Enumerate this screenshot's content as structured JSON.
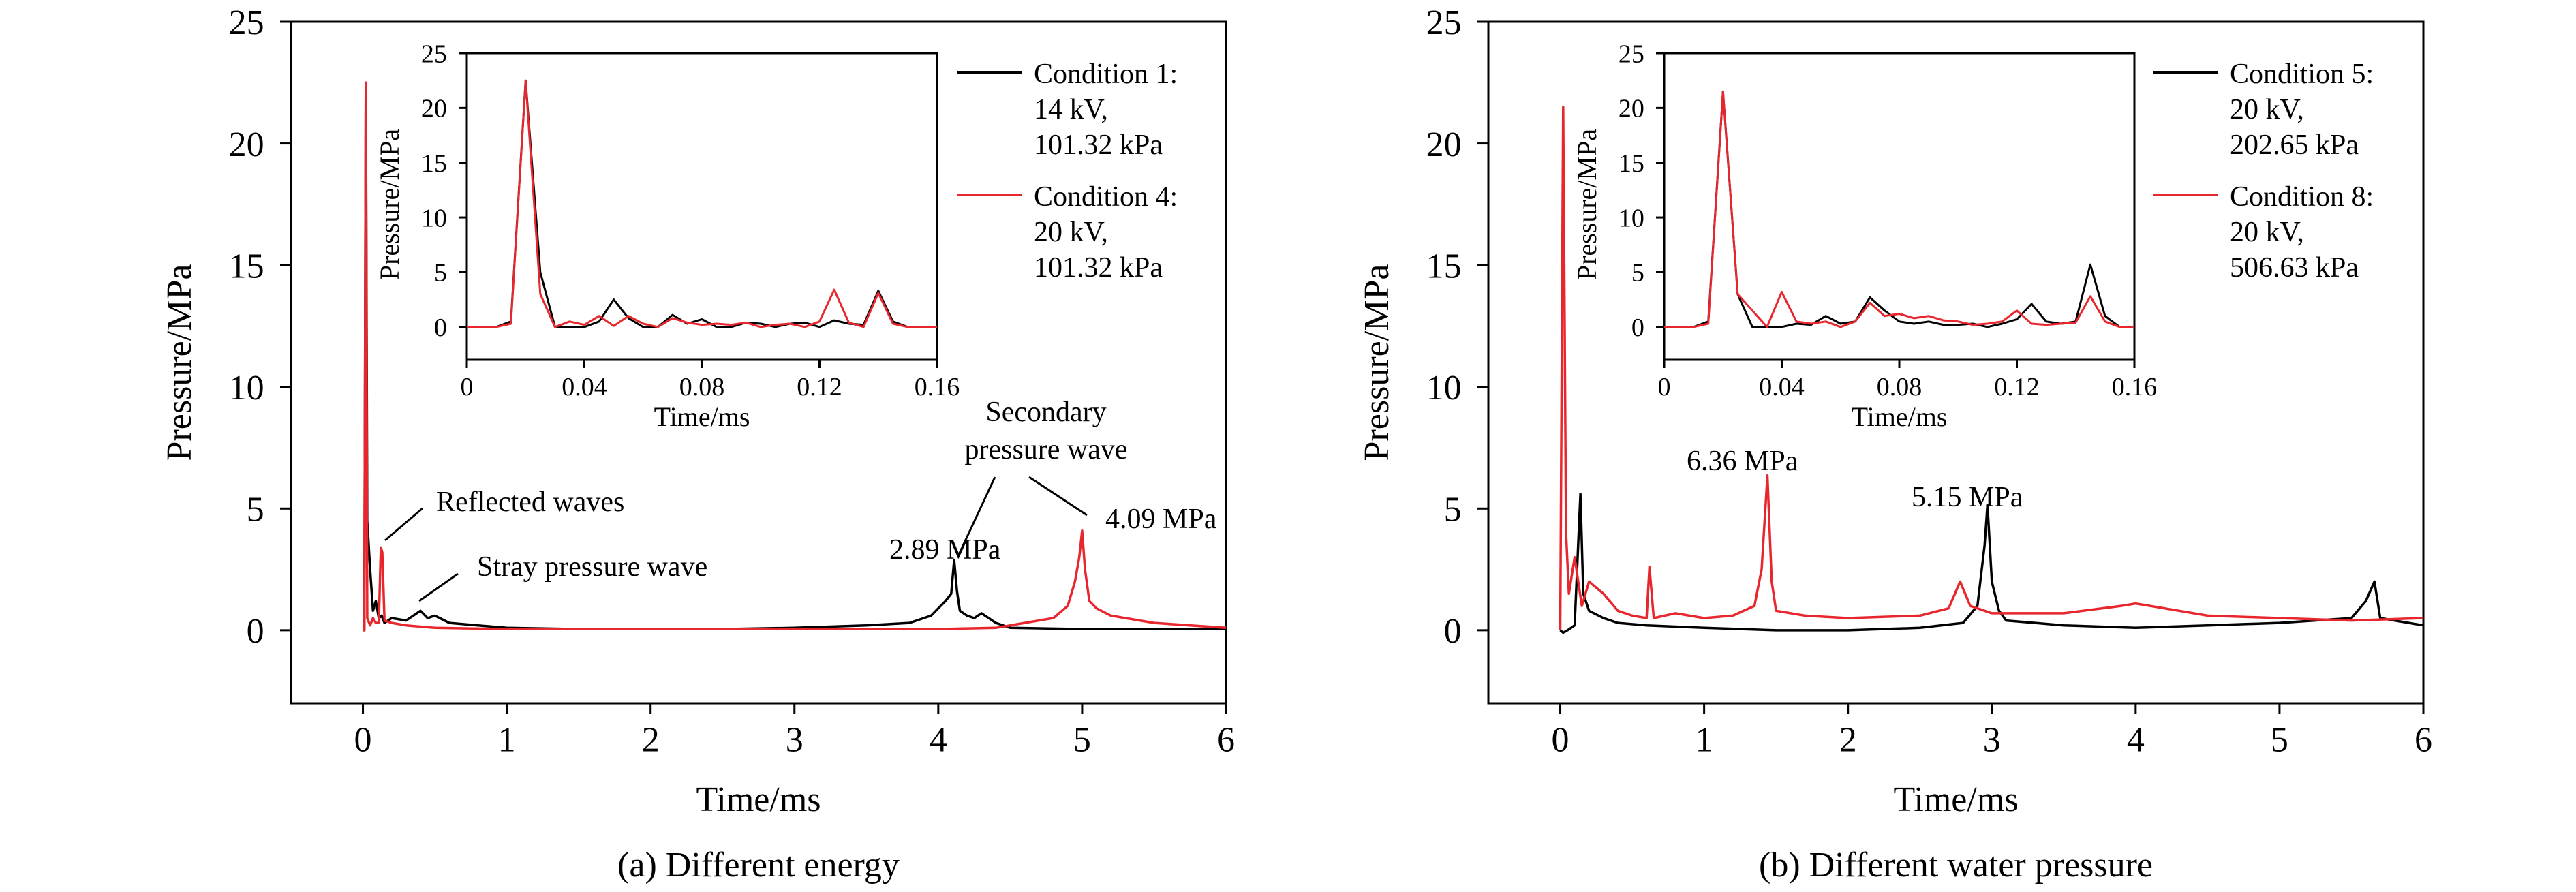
{
  "chart_data": [
    {
      "type": "line",
      "panel": "a",
      "caption": "(a) Different energy",
      "xlabel": "Time/ms",
      "ylabel": "Pressure/MPa",
      "xlim": [
        -0.5,
        6
      ],
      "ylim": [
        -3,
        25
      ],
      "xticks": [
        "0",
        "1",
        "2",
        "3",
        "4",
        "5",
        "6"
      ],
      "yticks": [
        "0",
        "5",
        "10",
        "15",
        "20",
        "25"
      ],
      "grid": false,
      "legend_position": "top-right",
      "series": [
        {
          "name": "Condition 1:",
          "legend_lines": [
            "Condition 1:",
            "14 kV,",
            "101.32 kPa"
          ],
          "color": "#000000",
          "x": [
            0,
            0.01,
            0.02,
            0.03,
            0.05,
            0.07,
            0.09,
            0.11,
            0.13,
            0.15,
            0.2,
            0.3,
            0.4,
            0.45,
            0.5,
            0.6,
            0.8,
            1.0,
            1.5,
            2.0,
            2.5,
            3.0,
            3.5,
            3.8,
            3.95,
            4.0,
            4.05,
            4.09,
            4.11,
            4.13,
            4.15,
            4.2,
            4.25,
            4.3,
            4.4,
            4.5,
            5.0,
            6.0
          ],
          "y": [
            0,
            0,
            22.5,
            4.5,
            2.5,
            0.8,
            1.2,
            0.5,
            0.6,
            0.3,
            0.5,
            0.4,
            0.8,
            0.5,
            0.6,
            0.3,
            0.2,
            0.1,
            0.05,
            0.05,
            0.05,
            0.1,
            0.2,
            0.3,
            0.6,
            0.9,
            1.2,
            1.5,
            2.89,
            1.6,
            0.8,
            0.6,
            0.5,
            0.7,
            0.3,
            0.1,
            0.05,
            0.05
          ]
        },
        {
          "name": "Condition 4:",
          "legend_lines": [
            "Condition 4:",
            "20 kV,",
            "101.32 kPa"
          ],
          "color": "#e8262d",
          "x": [
            0,
            0.01,
            0.02,
            0.03,
            0.05,
            0.07,
            0.09,
            0.11,
            0.125,
            0.135,
            0.15,
            0.2,
            0.3,
            0.5,
            1.0,
            2.0,
            3.0,
            4.0,
            4.4,
            4.6,
            4.8,
            4.9,
            4.95,
            4.98,
            5.0,
            5.02,
            5.05,
            5.1,
            5.2,
            5.3,
            5.5,
            6.0
          ],
          "y": [
            0,
            0,
            22.5,
            0.5,
            0.2,
            0.5,
            0.3,
            0.3,
            3.4,
            3.2,
            0.4,
            0.3,
            0.2,
            0.1,
            0.05,
            0.05,
            0.05,
            0.05,
            0.1,
            0.3,
            0.5,
            1.0,
            2.0,
            3.0,
            4.09,
            2.5,
            1.2,
            0.9,
            0.6,
            0.5,
            0.3,
            0.1
          ]
        }
      ],
      "annotations": [
        "Reflected waves",
        "Stray pressure wave",
        "2.89 MPa",
        "Secondary",
        "pressure wave",
        "4.09 MPa"
      ],
      "inset": {
        "xlabel": "Time/ms",
        "ylabel": "Pressure/MPa",
        "xlim": [
          0,
          0.16
        ],
        "ylim": [
          -3,
          25
        ],
        "xticks": [
          "0",
          "0.04",
          "0.08",
          "0.12",
          "0.16"
        ],
        "yticks": [
          "0",
          "5",
          "10",
          "15",
          "20",
          "25"
        ],
        "series": [
          {
            "color": "#000000",
            "x": [
              0,
              0.01,
              0.015,
              0.02,
              0.025,
              0.03,
              0.035,
              0.04,
              0.045,
              0.05,
              0.055,
              0.06,
              0.065,
              0.07,
              0.075,
              0.08,
              0.085,
              0.09,
              0.095,
              0.1,
              0.105,
              0.11,
              0.115,
              0.12,
              0.125,
              0.13,
              0.135,
              0.14,
              0.145,
              0.15,
              0.155,
              0.16
            ],
            "y": [
              0,
              0,
              0.5,
              22.5,
              5,
              0,
              0,
              0,
              0.5,
              2.5,
              0.8,
              0,
              0,
              1.1,
              0.3,
              0.7,
              0,
              0,
              0.4,
              0.3,
              0,
              0.3,
              0.4,
              0,
              0.6,
              0.3,
              0.2,
              3.3,
              0.5,
              0,
              0,
              0
            ]
          },
          {
            "color": "#e8262d",
            "x": [
              0,
              0.01,
              0.015,
              0.02,
              0.025,
              0.03,
              0.035,
              0.04,
              0.045,
              0.05,
              0.055,
              0.06,
              0.065,
              0.07,
              0.075,
              0.08,
              0.085,
              0.09,
              0.095,
              0.1,
              0.105,
              0.11,
              0.115,
              0.12,
              0.125,
              0.13,
              0.135,
              0.14,
              0.145,
              0.15,
              0.155,
              0.16
            ],
            "y": [
              0,
              0,
              0.3,
              22.5,
              3,
              0,
              0.5,
              0.2,
              1,
              0.1,
              1,
              0.3,
              0,
              0.8,
              0.4,
              0.2,
              0.3,
              0.2,
              0.4,
              0,
              0.2,
              0.3,
              0,
              0.5,
              3.4,
              0.4,
              0,
              3.1,
              0.3,
              0,
              0,
              0
            ]
          }
        ]
      }
    },
    {
      "type": "line",
      "panel": "b",
      "caption": "(b) Different water pressure",
      "xlabel": "Time/ms",
      "ylabel": "Pressure/MPa",
      "xlim": [
        -0.5,
        6
      ],
      "ylim": [
        -3,
        25
      ],
      "xticks": [
        "0",
        "1",
        "2",
        "3",
        "4",
        "5",
        "6"
      ],
      "yticks": [
        "0",
        "5",
        "10",
        "15",
        "20",
        "25"
      ],
      "grid": false,
      "legend_position": "top-right",
      "series": [
        {
          "name": "Condition 5:",
          "legend_lines": [
            "Condition 5:",
            "20 kV,",
            "202.65 kPa"
          ],
          "color": "#000000",
          "x": [
            0,
            0.02,
            0.05,
            0.1,
            0.14,
            0.16,
            0.2,
            0.3,
            0.4,
            0.6,
            1.0,
            1.5,
            2.0,
            2.5,
            2.8,
            2.9,
            2.95,
            2.97,
            3.0,
            3.05,
            3.1,
            3.3,
            3.5,
            4.0,
            4.5,
            5.0,
            5.5,
            5.6,
            5.66,
            5.7,
            5.8,
            6.0
          ],
          "y": [
            0,
            -0.1,
            0,
            0.2,
            5.6,
            1.5,
            0.8,
            0.5,
            0.3,
            0.2,
            0.1,
            0,
            0,
            0.1,
            0.3,
            1.0,
            3.5,
            5.15,
            2.0,
            0.8,
            0.4,
            0.3,
            0.2,
            0.1,
            0.2,
            0.3,
            0.5,
            1.2,
            2.0,
            0.5,
            0.4,
            0.2
          ]
        },
        {
          "name": "Condition 8:",
          "legend_lines": [
            "Condition 8:",
            "20 kV,",
            "506.63 kPa"
          ],
          "color": "#e8262d",
          "x": [
            0,
            0.02,
            0.04,
            0.06,
            0.1,
            0.15,
            0.2,
            0.3,
            0.4,
            0.5,
            0.6,
            0.62,
            0.65,
            0.8,
            1.0,
            1.2,
            1.35,
            1.4,
            1.44,
            1.47,
            1.5,
            1.7,
            2.0,
            2.5,
            2.7,
            2.78,
            2.85,
            3.0,
            3.5,
            3.9,
            4.0,
            4.2,
            4.5,
            5.0,
            5.5,
            6.0
          ],
          "y": [
            0,
            21.5,
            4,
            1.5,
            3,
            1,
            2,
            1.5,
            0.8,
            0.6,
            0.5,
            2.6,
            0.5,
            0.7,
            0.5,
            0.6,
            1.0,
            2.5,
            6.36,
            2.0,
            0.8,
            0.6,
            0.5,
            0.6,
            0.9,
            2.0,
            1.0,
            0.7,
            0.7,
            1.0,
            1.1,
            0.9,
            0.6,
            0.5,
            0.4,
            0.5
          ]
        }
      ],
      "annotations": [
        "6.36 MPa",
        "5.15 MPa"
      ],
      "inset": {
        "xlabel": "Time/ms",
        "ylabel": "Pressure/MPa",
        "xlim": [
          0,
          0.16
        ],
        "ylim": [
          -3,
          25
        ],
        "xticks": [
          "0",
          "0.04",
          "0.08",
          "0.12",
          "0.16"
        ],
        "yticks": [
          "0",
          "5",
          "10",
          "15",
          "20",
          "25"
        ],
        "series": [
          {
            "color": "#000000",
            "x": [
              0,
              0.01,
              0.015,
              0.02,
              0.025,
              0.03,
              0.035,
              0.04,
              0.045,
              0.05,
              0.055,
              0.06,
              0.065,
              0.07,
              0.075,
              0.08,
              0.085,
              0.09,
              0.095,
              0.1,
              0.105,
              0.11,
              0.115,
              0.12,
              0.125,
              0.13,
              0.135,
              0.14,
              0.145,
              0.15,
              0.155,
              0.16
            ],
            "y": [
              0,
              0,
              0.5,
              21.5,
              3,
              0,
              0,
              0,
              0.3,
              0.2,
              1.0,
              0.3,
              0.5,
              2.7,
              1.5,
              0.5,
              0.3,
              0.5,
              0.2,
              0.2,
              0.3,
              0,
              0.3,
              0.7,
              2.1,
              0.5,
              0.3,
              0.5,
              5.7,
              1.0,
              0,
              0
            ]
          },
          {
            "color": "#e8262d",
            "x": [
              0,
              0.01,
              0.015,
              0.02,
              0.025,
              0.03,
              0.035,
              0.04,
              0.045,
              0.05,
              0.055,
              0.06,
              0.065,
              0.07,
              0.075,
              0.08,
              0.085,
              0.09,
              0.095,
              0.1,
              0.105,
              0.11,
              0.115,
              0.12,
              0.125,
              0.13,
              0.135,
              0.14,
              0.145,
              0.15,
              0.155,
              0.16
            ],
            "y": [
              0,
              0,
              0.3,
              21.5,
              3,
              1.5,
              0,
              3.2,
              0.5,
              0.3,
              0.5,
              0,
              0.5,
              2.2,
              1.0,
              1.2,
              0.8,
              1.0,
              0.6,
              0.5,
              0.2,
              0.3,
              0.5,
              1.5,
              0.3,
              0.2,
              0.3,
              0.4,
              2.8,
              0.5,
              0,
              0
            ]
          }
        ]
      }
    }
  ]
}
